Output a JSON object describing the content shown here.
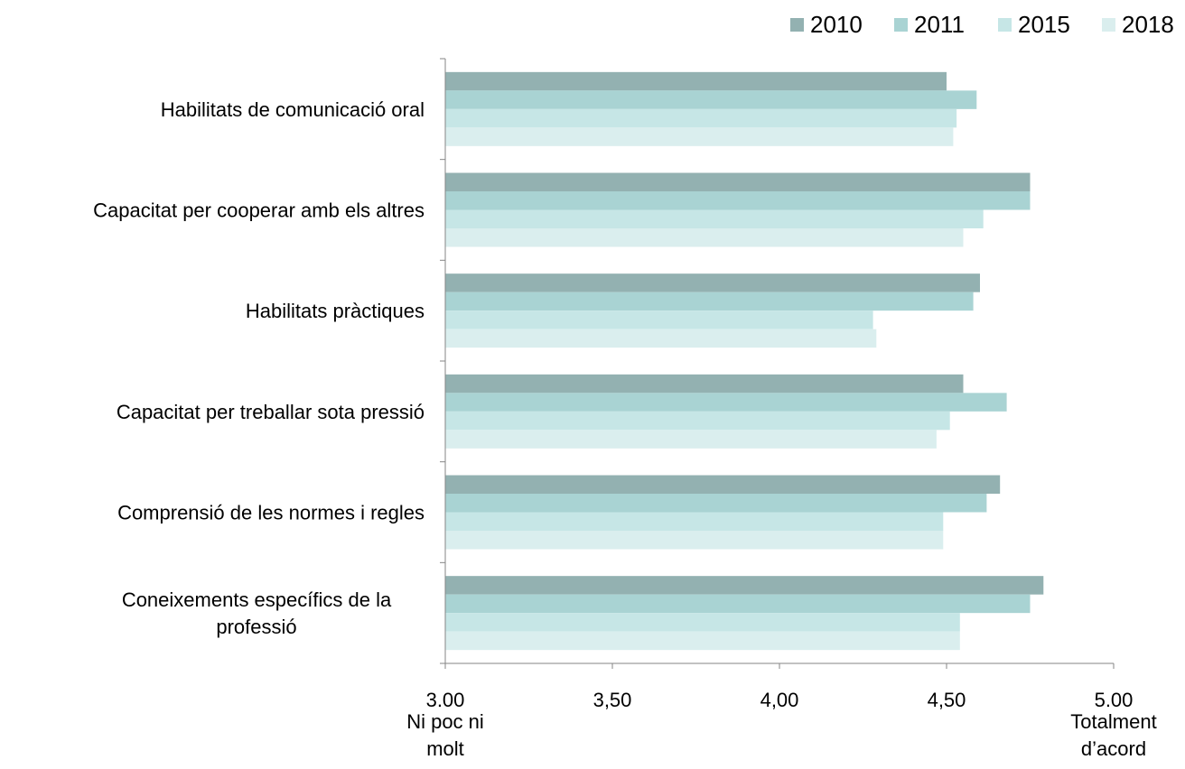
{
  "chart_data": {
    "type": "hbar",
    "categories": [
      "Habilitats de comunicació oral",
      "Capacitat per cooperar amb els altres",
      "Habilitats pràctiques",
      "Capacitat per treballar sota pressió",
      "Comprensió de les normes i regles",
      "Coneixements específics de la\nprofessió"
    ],
    "series": [
      {
        "name": "2010",
        "color": "#93b1b1",
        "values": [
          4.5,
          4.75,
          4.6,
          4.55,
          4.66,
          4.79
        ]
      },
      {
        "name": "2011",
        "color": "#a9d3d3",
        "values": [
          4.59,
          4.75,
          4.58,
          4.68,
          4.62,
          4.75
        ]
      },
      {
        "name": "2015",
        "color": "#c6e6e6",
        "values": [
          4.53,
          4.61,
          4.28,
          4.51,
          4.49,
          4.54
        ]
      },
      {
        "name": "2018",
        "color": "#daeeee",
        "values": [
          4.52,
          4.55,
          4.29,
          4.47,
          4.49,
          4.54
        ]
      }
    ],
    "xlim": [
      3,
      5
    ],
    "xticks": [
      {
        "value": 3,
        "label": "3.00"
      },
      {
        "value": 3.5,
        "label": "3,50"
      },
      {
        "value": 4,
        "label": "4,00"
      },
      {
        "value": 4.5,
        "label": "4,50"
      },
      {
        "value": 5,
        "label": "5.00"
      }
    ],
    "annotations": [
      {
        "text": "Ni poc ni\nmolt",
        "x": 3
      },
      {
        "text": "Totalment\nd’acord",
        "x": 5
      }
    ],
    "legend": "top-right"
  }
}
